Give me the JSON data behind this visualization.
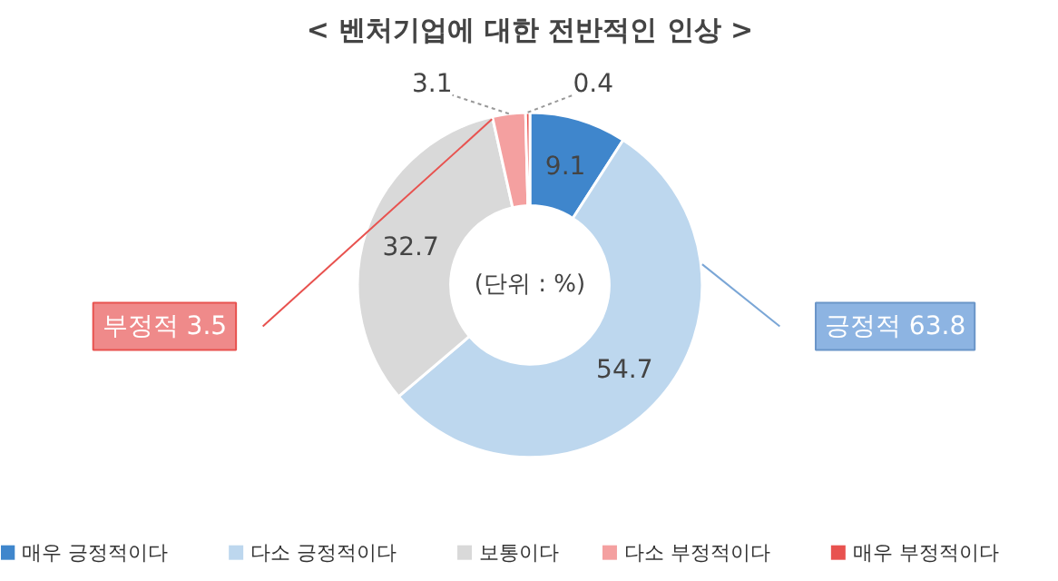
{
  "chart_data": {
    "type": "donut",
    "title": "< 벤처기업에 대한 전반적인 인상 >",
    "categories": [
      "매우 긍정적이다",
      "다소 긍정적이다",
      "보통이다",
      "다소 부정적이다",
      "매우 부정적이다"
    ],
    "values": [
      9.1,
      54.7,
      32.7,
      3.1,
      0.4
    ],
    "colors": [
      "#3f86cc",
      "#bdd7ee",
      "#d9d9d9",
      "#f4a0a0",
      "#e8524f"
    ],
    "data_labels": true,
    "legend": "bottom",
    "annotations": [
      "(단위 : %)",
      "부정적 3.5",
      "긍정적 63.8"
    ]
  }
}
